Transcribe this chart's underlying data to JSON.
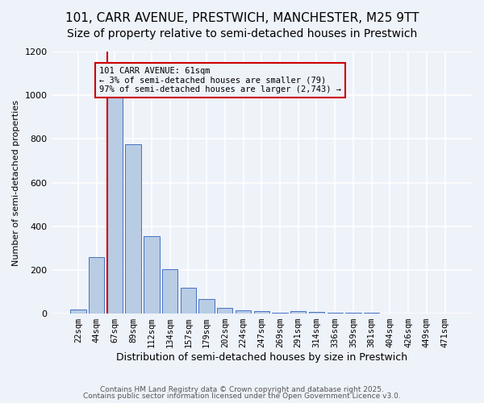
{
  "title1": "101, CARR AVENUE, PRESTWICH, MANCHESTER, M25 9TT",
  "title2": "Size of property relative to semi-detached houses in Prestwich",
  "xlabel": "Distribution of semi-detached houses by size in Prestwich",
  "ylabel": "Number of semi-detached properties",
  "bar_labels": [
    "22sqm",
    "44sqm",
    "67sqm",
    "89sqm",
    "112sqm",
    "134sqm",
    "157sqm",
    "179sqm",
    "202sqm",
    "224sqm",
    "247sqm",
    "269sqm",
    "291sqm",
    "314sqm",
    "336sqm",
    "359sqm",
    "381sqm",
    "404sqm",
    "426sqm",
    "449sqm",
    "471sqm"
  ],
  "bar_values": [
    20,
    260,
    990,
    775,
    355,
    205,
    120,
    65,
    25,
    15,
    13,
    5,
    12,
    8,
    5,
    3,
    3,
    2,
    1,
    1,
    0
  ],
  "bar_color": "#b8cce4",
  "bar_edgecolor": "#4472c4",
  "ylim": [
    0,
    1200
  ],
  "yticks": [
    0,
    200,
    400,
    600,
    800,
    1000,
    1200
  ],
  "vline_x_index": 2,
  "vline_color": "#cc0000",
  "annotation_text": "101 CARR AVENUE: 61sqm\n← 3% of semi-detached houses are smaller (79)\n97% of semi-detached houses are larger (2,743) →",
  "annotation_box_color": "#cc0000",
  "footnote1": "Contains HM Land Registry data © Crown copyright and database right 2025.",
  "footnote2": "Contains public sector information licensed under the Open Government Licence v3.0.",
  "bg_color": "#eef2f9",
  "grid_color": "#ffffff",
  "title1_fontsize": 11,
  "title2_fontsize": 10
}
